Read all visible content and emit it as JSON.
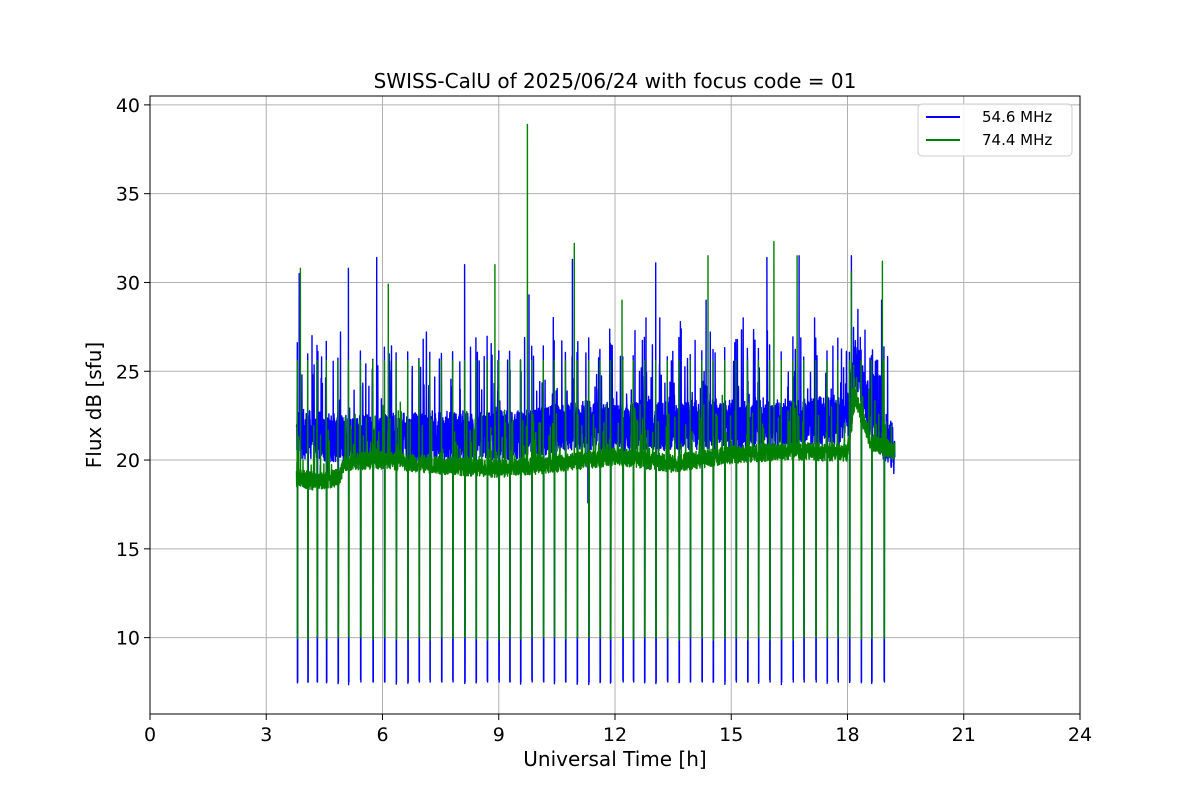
{
  "chart_data": {
    "type": "line",
    "title": "SWISS-CalU of 2025/06/24 with focus code = 01",
    "xlabel": "Universal Time [h]",
    "ylabel": "Flux dB [sfu]",
    "xlim": [
      0,
      24
    ],
    "ylim": [
      5.7,
      40.5
    ],
    "xticks": [
      0,
      3,
      6,
      9,
      12,
      15,
      18,
      21,
      24
    ],
    "yticks": [
      10,
      15,
      20,
      25,
      30,
      35,
      40
    ],
    "grid": true,
    "legend_position": "top-right",
    "series": [
      {
        "name": "54.6 MHz",
        "color": "#0000ff",
        "data_start": 3.78,
        "data_end": 19.22,
        "baseline": [
          [
            3.78,
            21.5
          ],
          [
            5.0,
            21.2
          ],
          [
            8.0,
            21.3
          ],
          [
            10.0,
            21.5
          ],
          [
            11.0,
            22.0
          ],
          [
            12.0,
            21.8
          ],
          [
            14.0,
            22.0
          ],
          [
            16.0,
            22.0
          ],
          [
            18.0,
            22.3
          ],
          [
            18.2,
            25.5
          ],
          [
            18.6,
            22.5
          ],
          [
            19.22,
            20.5
          ]
        ],
        "noise_amplitude": 1.4,
        "calibration_dips": [
          3.8,
          4.07,
          4.31,
          4.55,
          4.85,
          5.12,
          5.43,
          5.75,
          6.05,
          6.35,
          6.65,
          6.94,
          7.22,
          7.52,
          7.81,
          8.12,
          8.41,
          8.7,
          9.0,
          9.28,
          9.56,
          9.85,
          10.15,
          10.43,
          10.72,
          11.02,
          11.32,
          11.61,
          11.88,
          12.2,
          12.47,
          12.76,
          13.05,
          13.35,
          13.65,
          13.94,
          14.24,
          14.53,
          14.83,
          15.12,
          15.42,
          15.7,
          15.99,
          16.29,
          16.59,
          16.87,
          17.18,
          17.47,
          17.75,
          18.05,
          18.35,
          18.62,
          18.94
        ],
        "dip_value": 7.5,
        "spikes": [
          [
            3.85,
            30.5
          ],
          [
            4.18,
            27.0
          ],
          [
            5.12,
            30.8
          ],
          [
            5.85,
            31.4
          ],
          [
            7.05,
            26.8
          ],
          [
            8.12,
            31.0
          ],
          [
            9.78,
            29.3
          ],
          [
            10.9,
            31.3
          ],
          [
            11.3,
            17.6
          ],
          [
            12.8,
            28.0
          ],
          [
            13.05,
            31.1
          ],
          [
            14.35,
            29.0
          ],
          [
            15.92,
            31.4
          ],
          [
            16.75,
            31.5
          ],
          [
            17.15,
            28.0
          ],
          [
            18.1,
            31.5
          ],
          [
            18.33,
            26.9
          ],
          [
            18.88,
            29.0
          ]
        ]
      },
      {
        "name": "74.4 MHz",
        "color": "#008000",
        "data_start": 3.78,
        "data_end": 19.22,
        "baseline": [
          [
            3.78,
            19.0
          ],
          [
            4.2,
            18.8
          ],
          [
            4.9,
            19.0
          ],
          [
            5.0,
            19.9
          ],
          [
            6.0,
            20.0
          ],
          [
            7.5,
            19.7
          ],
          [
            9.0,
            19.5
          ],
          [
            10.5,
            19.8
          ],
          [
            12.0,
            20.2
          ],
          [
            13.5,
            19.8
          ],
          [
            15.0,
            20.3
          ],
          [
            16.5,
            20.5
          ],
          [
            18.0,
            20.4
          ],
          [
            18.2,
            23.5
          ],
          [
            18.6,
            21.0
          ],
          [
            19.22,
            20.5
          ]
        ],
        "noise_amplitude": 0.5,
        "calibration_dips": [
          3.8,
          4.07,
          4.31,
          4.55,
          4.85,
          5.12,
          5.43,
          5.75,
          6.05,
          6.35,
          6.65,
          6.94,
          7.22,
          7.52,
          7.81,
          8.12,
          8.41,
          8.7,
          9.0,
          9.28,
          9.56,
          9.85,
          10.15,
          10.43,
          10.72,
          11.02,
          11.32,
          11.61,
          11.88,
          12.2,
          12.47,
          12.76,
          13.05,
          13.35,
          13.65,
          13.94,
          14.24,
          14.53,
          14.83,
          15.12,
          15.42,
          15.7,
          15.99,
          16.29,
          16.59,
          16.87,
          17.18,
          17.47,
          17.75,
          18.05,
          18.35,
          18.62,
          18.94
        ],
        "dip_value": 10.0,
        "peak_value": 25.6,
        "spikes": [
          [
            3.88,
            30.8
          ],
          [
            6.15,
            29.9
          ],
          [
            8.9,
            31.0
          ],
          [
            9.74,
            38.9
          ],
          [
            10.95,
            32.2
          ],
          [
            12.18,
            29.0
          ],
          [
            14.4,
            31.5
          ],
          [
            16.1,
            32.3
          ],
          [
            16.7,
            31.5
          ],
          [
            18.1,
            30.6
          ],
          [
            18.9,
            31.2
          ]
        ]
      }
    ]
  }
}
